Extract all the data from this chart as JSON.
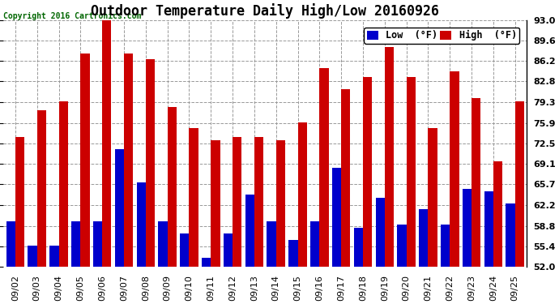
{
  "title": "Outdoor Temperature Daily High/Low 20160926",
  "copyright": "Copyright 2016 Cartronics.com",
  "legend_low_label": "Low  (°F)",
  "legend_high_label": "High  (°F)",
  "dates": [
    "09/02",
    "09/03",
    "09/04",
    "09/05",
    "09/06",
    "09/07",
    "09/08",
    "09/09",
    "09/10",
    "09/11",
    "09/12",
    "09/13",
    "09/14",
    "09/15",
    "09/16",
    "09/17",
    "09/18",
    "09/19",
    "09/20",
    "09/21",
    "09/22",
    "09/23",
    "09/24",
    "09/25"
  ],
  "highs": [
    73.5,
    78.0,
    79.5,
    87.5,
    93.5,
    87.5,
    86.5,
    78.5,
    75.0,
    73.0,
    73.5,
    73.5,
    73.0,
    76.0,
    85.0,
    81.5,
    83.5,
    88.5,
    83.5,
    75.0,
    84.5,
    80.0,
    69.5,
    79.5
  ],
  "lows": [
    59.5,
    55.5,
    55.5,
    59.5,
    59.5,
    71.5,
    66.0,
    59.5,
    57.5,
    53.5,
    57.5,
    64.0,
    59.5,
    56.5,
    59.5,
    68.5,
    58.5,
    63.5,
    59.0,
    61.5,
    59.0,
    65.0,
    64.5,
    62.5
  ],
  "ylim_min": 52.0,
  "ylim_max": 93.0,
  "yticks": [
    52.0,
    55.4,
    58.8,
    62.2,
    65.7,
    69.1,
    72.5,
    75.9,
    79.3,
    82.8,
    86.2,
    89.6,
    93.0
  ],
  "bar_width": 0.42,
  "low_color": "#0000cc",
  "high_color": "#cc0000",
  "bg_color": "#ffffff",
  "grid_color": "#999999",
  "title_fontsize": 12,
  "tick_fontsize": 8,
  "legend_fontsize": 8.5,
  "copyright_color": "#006600"
}
